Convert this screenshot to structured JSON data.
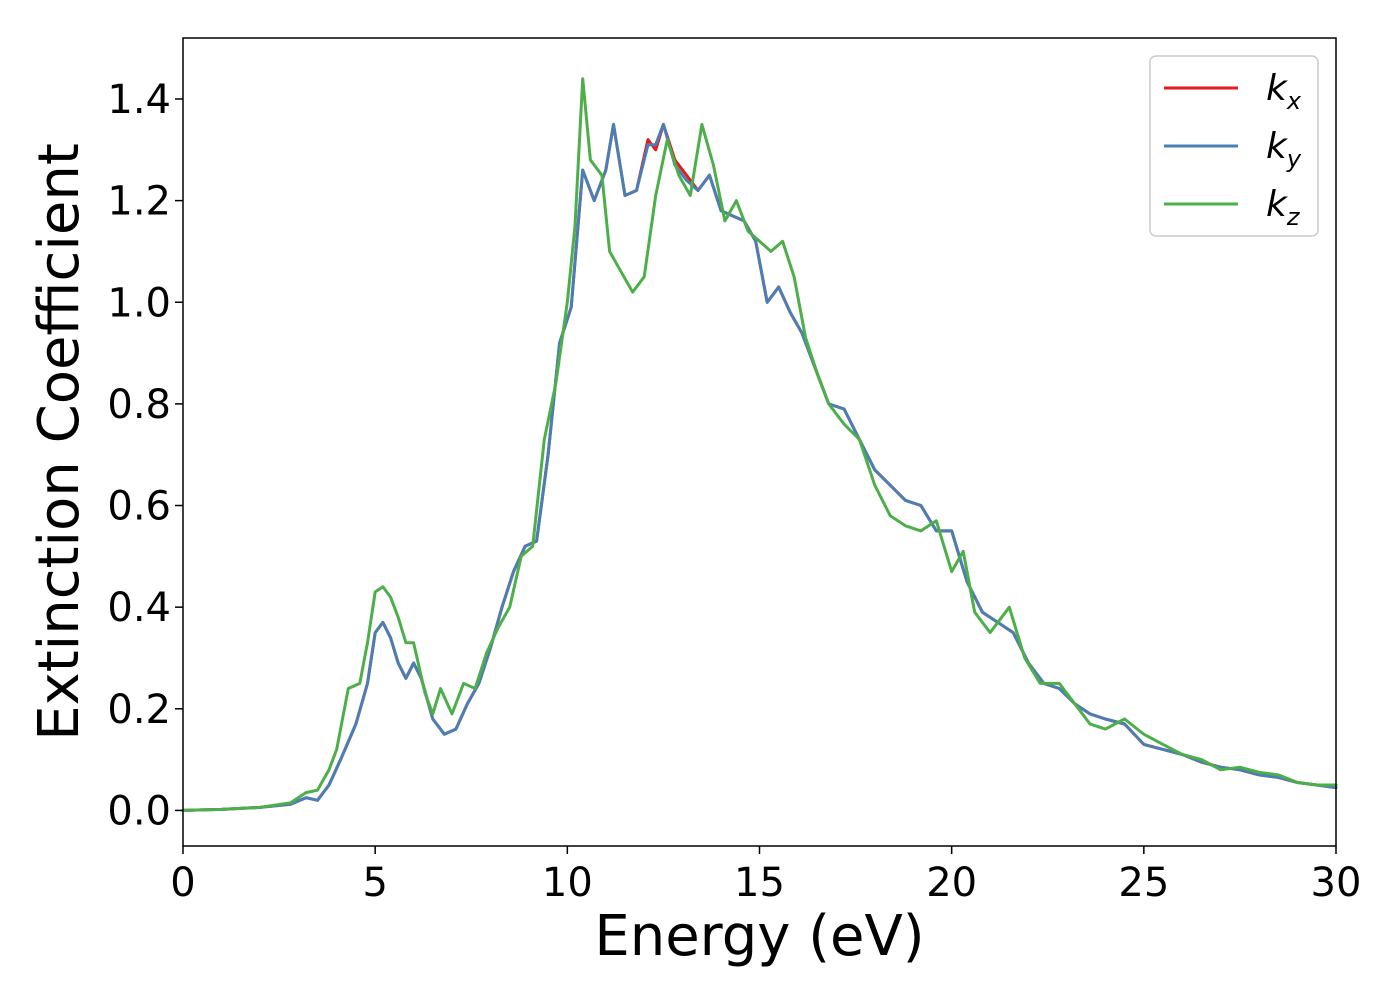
{
  "chart_data": {
    "type": "line",
    "title": "",
    "xlabel": "Energy (eV)",
    "ylabel": "Extinction Coefficient",
    "xlim": [
      0,
      30
    ],
    "ylim": [
      -0.07,
      1.52
    ],
    "xticks": [
      0,
      5,
      10,
      15,
      20,
      25,
      30
    ],
    "xtick_labels": [
      "0",
      "5",
      "10",
      "15",
      "20",
      "25",
      "30"
    ],
    "yticks": [
      0.0,
      0.2,
      0.4,
      0.6,
      0.8,
      1.0,
      1.2,
      1.4
    ],
    "ytick_labels": [
      "0.0",
      "0.2",
      "0.4",
      "0.6",
      "0.8",
      "1.0",
      "1.2",
      "1.4"
    ],
    "grid": false,
    "legend_position": "top-right",
    "series": [
      {
        "name": "k_x",
        "label_base": "k",
        "label_sub": "x",
        "color": "#e41a1c",
        "points": [
          [
            0,
            0.0
          ],
          [
            1,
            0.002
          ],
          [
            2,
            0.006
          ],
          [
            2.8,
            0.012
          ],
          [
            3.2,
            0.025
          ],
          [
            3.5,
            0.02
          ],
          [
            3.8,
            0.05
          ],
          [
            4.1,
            0.1
          ],
          [
            4.5,
            0.17
          ],
          [
            4.8,
            0.25
          ],
          [
            5.0,
            0.35
          ],
          [
            5.2,
            0.37
          ],
          [
            5.4,
            0.34
          ],
          [
            5.6,
            0.29
          ],
          [
            5.8,
            0.26
          ],
          [
            6.0,
            0.29
          ],
          [
            6.2,
            0.26
          ],
          [
            6.5,
            0.18
          ],
          [
            6.8,
            0.15
          ],
          [
            7.1,
            0.16
          ],
          [
            7.4,
            0.21
          ],
          [
            7.7,
            0.25
          ],
          [
            8.0,
            0.32
          ],
          [
            8.3,
            0.4
          ],
          [
            8.6,
            0.47
          ],
          [
            8.9,
            0.52
          ],
          [
            9.2,
            0.53
          ],
          [
            9.5,
            0.7
          ],
          [
            9.8,
            0.92
          ],
          [
            10.1,
            0.99
          ],
          [
            10.4,
            1.26
          ],
          [
            10.7,
            1.2
          ],
          [
            11.0,
            1.26
          ],
          [
            11.2,
            1.35
          ],
          [
            11.5,
            1.21
          ],
          [
            11.8,
            1.22
          ],
          [
            12.1,
            1.32
          ],
          [
            12.3,
            1.3
          ],
          [
            12.5,
            1.35
          ],
          [
            12.8,
            1.28
          ],
          [
            13.1,
            1.25
          ],
          [
            13.4,
            1.22
          ],
          [
            13.7,
            1.25
          ],
          [
            14.0,
            1.18
          ],
          [
            14.3,
            1.17
          ],
          [
            14.6,
            1.16
          ],
          [
            14.9,
            1.12
          ],
          [
            15.2,
            1.0
          ],
          [
            15.5,
            1.03
          ],
          [
            15.8,
            0.98
          ],
          [
            16.1,
            0.94
          ],
          [
            16.5,
            0.86
          ],
          [
            16.8,
            0.8
          ],
          [
            17.2,
            0.79
          ],
          [
            17.6,
            0.73
          ],
          [
            18.0,
            0.67
          ],
          [
            18.4,
            0.64
          ],
          [
            18.8,
            0.61
          ],
          [
            19.2,
            0.6
          ],
          [
            19.6,
            0.55
          ],
          [
            20.0,
            0.55
          ],
          [
            20.4,
            0.45
          ],
          [
            20.8,
            0.39
          ],
          [
            21.2,
            0.37
          ],
          [
            21.6,
            0.35
          ],
          [
            22.0,
            0.29
          ],
          [
            22.4,
            0.25
          ],
          [
            22.8,
            0.24
          ],
          [
            23.2,
            0.21
          ],
          [
            23.6,
            0.19
          ],
          [
            24.0,
            0.18
          ],
          [
            24.5,
            0.17
          ],
          [
            25.0,
            0.13
          ],
          [
            25.5,
            0.12
          ],
          [
            26.0,
            0.11
          ],
          [
            26.5,
            0.095
          ],
          [
            27.0,
            0.085
          ],
          [
            27.5,
            0.08
          ],
          [
            28.0,
            0.07
          ],
          [
            28.5,
            0.065
          ],
          [
            29.0,
            0.055
          ],
          [
            29.5,
            0.05
          ],
          [
            30.0,
            0.045
          ]
        ]
      },
      {
        "name": "k_y",
        "label_base": "k",
        "label_sub": "y",
        "color": "#4a7fb5",
        "points": [
          [
            0,
            0.0
          ],
          [
            1,
            0.002
          ],
          [
            2,
            0.006
          ],
          [
            2.8,
            0.012
          ],
          [
            3.2,
            0.025
          ],
          [
            3.5,
            0.02
          ],
          [
            3.8,
            0.05
          ],
          [
            4.1,
            0.1
          ],
          [
            4.5,
            0.17
          ],
          [
            4.8,
            0.25
          ],
          [
            5.0,
            0.35
          ],
          [
            5.2,
            0.37
          ],
          [
            5.4,
            0.34
          ],
          [
            5.6,
            0.29
          ],
          [
            5.8,
            0.26
          ],
          [
            6.0,
            0.29
          ],
          [
            6.2,
            0.26
          ],
          [
            6.5,
            0.18
          ],
          [
            6.8,
            0.15
          ],
          [
            7.1,
            0.16
          ],
          [
            7.4,
            0.21
          ],
          [
            7.7,
            0.25
          ],
          [
            8.0,
            0.32
          ],
          [
            8.3,
            0.4
          ],
          [
            8.6,
            0.47
          ],
          [
            8.9,
            0.52
          ],
          [
            9.2,
            0.53
          ],
          [
            9.5,
            0.7
          ],
          [
            9.8,
            0.92
          ],
          [
            10.1,
            0.99
          ],
          [
            10.4,
            1.26
          ],
          [
            10.7,
            1.2
          ],
          [
            11.0,
            1.26
          ],
          [
            11.2,
            1.35
          ],
          [
            11.5,
            1.21
          ],
          [
            11.8,
            1.22
          ],
          [
            12.1,
            1.31
          ],
          [
            12.3,
            1.31
          ],
          [
            12.5,
            1.35
          ],
          [
            12.8,
            1.27
          ],
          [
            13.1,
            1.24
          ],
          [
            13.4,
            1.22
          ],
          [
            13.7,
            1.25
          ],
          [
            14.0,
            1.18
          ],
          [
            14.3,
            1.17
          ],
          [
            14.6,
            1.16
          ],
          [
            14.9,
            1.12
          ],
          [
            15.2,
            1.0
          ],
          [
            15.5,
            1.03
          ],
          [
            15.8,
            0.98
          ],
          [
            16.1,
            0.94
          ],
          [
            16.5,
            0.86
          ],
          [
            16.8,
            0.8
          ],
          [
            17.2,
            0.79
          ],
          [
            17.6,
            0.73
          ],
          [
            18.0,
            0.67
          ],
          [
            18.4,
            0.64
          ],
          [
            18.8,
            0.61
          ],
          [
            19.2,
            0.6
          ],
          [
            19.6,
            0.55
          ],
          [
            20.0,
            0.55
          ],
          [
            20.4,
            0.45
          ],
          [
            20.8,
            0.39
          ],
          [
            21.2,
            0.37
          ],
          [
            21.6,
            0.35
          ],
          [
            22.0,
            0.29
          ],
          [
            22.4,
            0.25
          ],
          [
            22.8,
            0.24
          ],
          [
            23.2,
            0.21
          ],
          [
            23.6,
            0.19
          ],
          [
            24.0,
            0.18
          ],
          [
            24.5,
            0.17
          ],
          [
            25.0,
            0.13
          ],
          [
            25.5,
            0.12
          ],
          [
            26.0,
            0.11
          ],
          [
            26.5,
            0.095
          ],
          [
            27.0,
            0.085
          ],
          [
            27.5,
            0.08
          ],
          [
            28.0,
            0.07
          ],
          [
            28.5,
            0.065
          ],
          [
            29.0,
            0.055
          ],
          [
            29.5,
            0.05
          ],
          [
            30.0,
            0.045
          ]
        ]
      },
      {
        "name": "k_z",
        "label_base": "k",
        "label_sub": "z",
        "color": "#4daf4a",
        "points": [
          [
            0,
            0.0
          ],
          [
            1,
            0.002
          ],
          [
            2,
            0.006
          ],
          [
            2.8,
            0.015
          ],
          [
            3.2,
            0.035
          ],
          [
            3.5,
            0.04
          ],
          [
            3.8,
            0.08
          ],
          [
            4.0,
            0.12
          ],
          [
            4.3,
            0.24
          ],
          [
            4.6,
            0.25
          ],
          [
            4.8,
            0.33
          ],
          [
            5.0,
            0.43
          ],
          [
            5.2,
            0.44
          ],
          [
            5.4,
            0.42
          ],
          [
            5.6,
            0.38
          ],
          [
            5.8,
            0.33
          ],
          [
            6.0,
            0.33
          ],
          [
            6.3,
            0.23
          ],
          [
            6.5,
            0.19
          ],
          [
            6.7,
            0.24
          ],
          [
            7.0,
            0.19
          ],
          [
            7.3,
            0.25
          ],
          [
            7.6,
            0.24
          ],
          [
            7.9,
            0.31
          ],
          [
            8.2,
            0.36
          ],
          [
            8.5,
            0.4
          ],
          [
            8.8,
            0.5
          ],
          [
            9.1,
            0.52
          ],
          [
            9.4,
            0.73
          ],
          [
            9.7,
            0.84
          ],
          [
            10.0,
            1.0
          ],
          [
            10.2,
            1.15
          ],
          [
            10.4,
            1.44
          ],
          [
            10.6,
            1.28
          ],
          [
            10.9,
            1.25
          ],
          [
            11.1,
            1.1
          ],
          [
            11.4,
            1.06
          ],
          [
            11.7,
            1.02
          ],
          [
            12.0,
            1.05
          ],
          [
            12.3,
            1.21
          ],
          [
            12.6,
            1.32
          ],
          [
            12.9,
            1.25
          ],
          [
            13.2,
            1.21
          ],
          [
            13.5,
            1.35
          ],
          [
            13.8,
            1.27
          ],
          [
            14.1,
            1.16
          ],
          [
            14.4,
            1.2
          ],
          [
            14.7,
            1.14
          ],
          [
            15.0,
            1.12
          ],
          [
            15.3,
            1.1
          ],
          [
            15.6,
            1.12
          ],
          [
            15.9,
            1.05
          ],
          [
            16.2,
            0.93
          ],
          [
            16.5,
            0.86
          ],
          [
            16.8,
            0.8
          ],
          [
            17.2,
            0.76
          ],
          [
            17.6,
            0.73
          ],
          [
            18.0,
            0.64
          ],
          [
            18.4,
            0.58
          ],
          [
            18.8,
            0.56
          ],
          [
            19.2,
            0.55
          ],
          [
            19.6,
            0.57
          ],
          [
            20.0,
            0.47
          ],
          [
            20.3,
            0.51
          ],
          [
            20.6,
            0.39
          ],
          [
            21.0,
            0.35
          ],
          [
            21.5,
            0.4
          ],
          [
            21.9,
            0.3
          ],
          [
            22.3,
            0.25
          ],
          [
            22.8,
            0.25
          ],
          [
            23.2,
            0.21
          ],
          [
            23.6,
            0.17
          ],
          [
            24.0,
            0.16
          ],
          [
            24.5,
            0.18
          ],
          [
            25.0,
            0.15
          ],
          [
            25.5,
            0.13
          ],
          [
            26.0,
            0.11
          ],
          [
            26.5,
            0.1
          ],
          [
            27.0,
            0.08
          ],
          [
            27.5,
            0.085
          ],
          [
            28.0,
            0.075
          ],
          [
            28.5,
            0.07
          ],
          [
            29.0,
            0.055
          ],
          [
            29.5,
            0.05
          ],
          [
            30.0,
            0.05
          ]
        ]
      }
    ]
  }
}
